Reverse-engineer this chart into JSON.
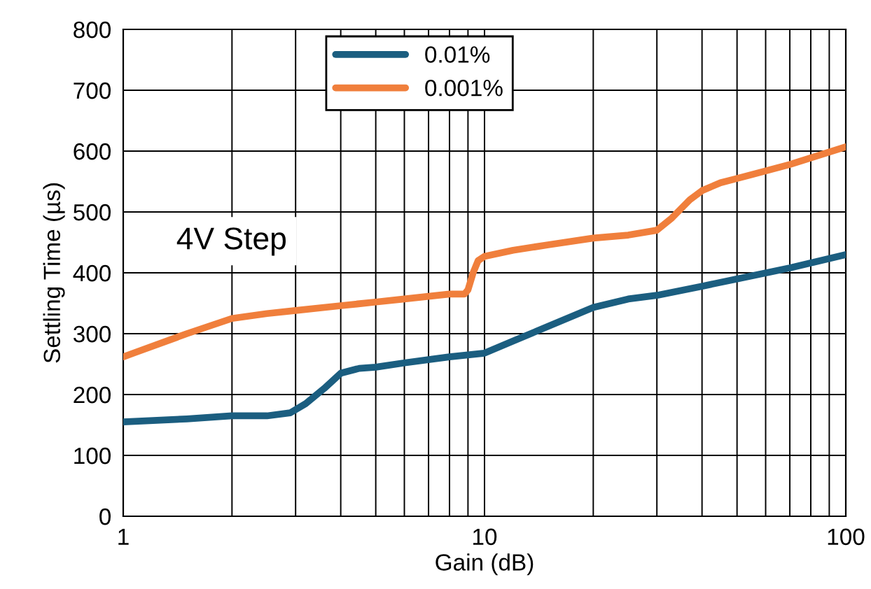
{
  "chart_data": {
    "type": "line",
    "xlabel": "Gain (dB)",
    "ylabel": "Settling Time (µs)",
    "log": "x",
    "xlim": [
      1,
      100
    ],
    "xticks": [
      1,
      10,
      100
    ],
    "ylim": [
      0,
      800
    ],
    "yticks": [
      0,
      100,
      200,
      300,
      400,
      500,
      600,
      700,
      800
    ],
    "grid": true,
    "legend": "top",
    "marker": "none",
    "line_style": "solid",
    "annotations": [
      "4V Step"
    ],
    "series": [
      {
        "name": "0.01%",
        "color": "#1b5e80",
        "x": [
          1,
          1.5,
          2,
          2.5,
          2.9,
          3.2,
          3.6,
          4,
          4.5,
          5,
          6,
          8,
          10,
          12,
          15,
          20,
          25,
          30,
          40,
          50,
          70,
          100
        ],
        "values": [
          155,
          160,
          165,
          165,
          170,
          185,
          210,
          235,
          243,
          245,
          252,
          262,
          268,
          288,
          312,
          343,
          357,
          363,
          378,
          390,
          408,
          430
        ]
      },
      {
        "name": "0.001%",
        "color": "#f07f3c",
        "x": [
          1,
          1.5,
          2,
          2.5,
          3,
          4,
          5,
          6,
          8,
          8.8,
          9,
          9.3,
          9.6,
          10,
          12,
          15,
          20,
          25,
          30,
          33,
          37,
          40,
          45,
          50,
          70,
          100
        ],
        "values": [
          262,
          300,
          325,
          333,
          338,
          346,
          352,
          357,
          365,
          365,
          372,
          400,
          420,
          427,
          437,
          446,
          457,
          462,
          470,
          490,
          520,
          535,
          548,
          555,
          578,
          607
        ]
      }
    ]
  }
}
